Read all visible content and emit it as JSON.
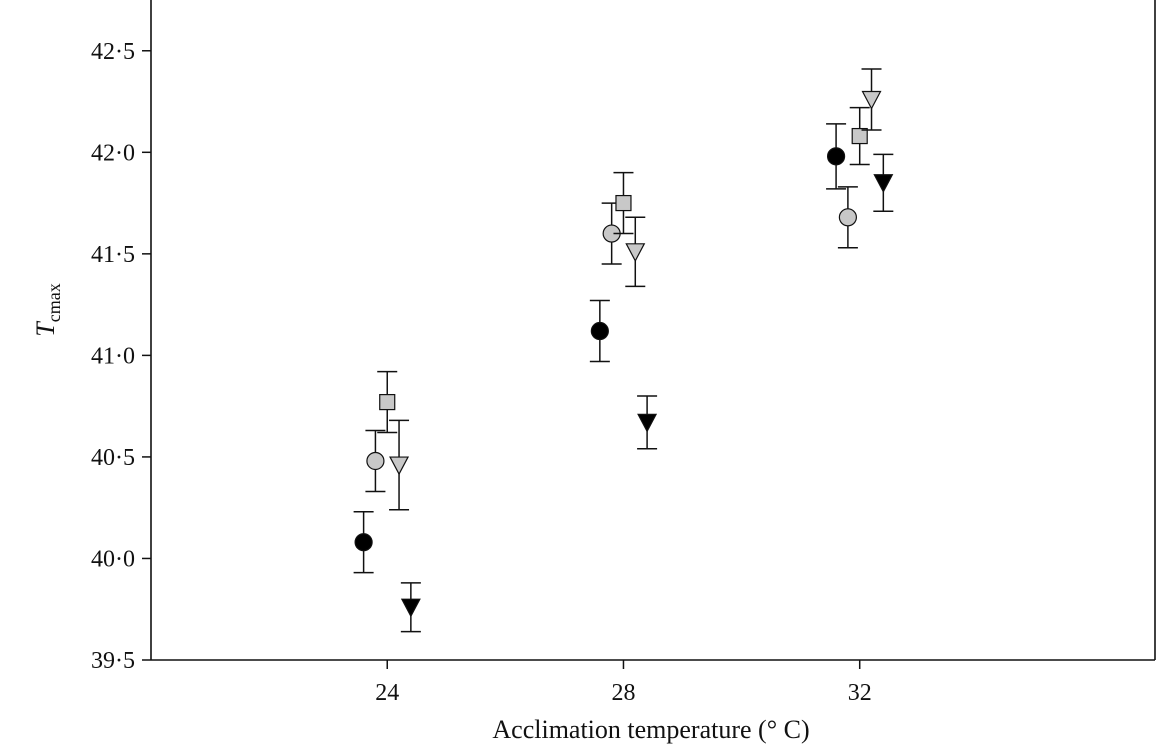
{
  "chart_data": {
    "type": "scatter",
    "title": "",
    "xlabel": "Acclimation  temperature (° C)",
    "ylabel_main": "T",
    "ylabel_sub": "cmax",
    "xlim": [
      20,
      37
    ],
    "ylim": [
      39.5,
      42.75
    ],
    "x_ticks": [
      24,
      28,
      32
    ],
    "x_tick_labels": [
      "24",
      "28",
      "32"
    ],
    "y_ticks": [
      39.5,
      40.0,
      40.5,
      41.0,
      41.5,
      42.0,
      42.5
    ],
    "y_tick_labels": [
      "39·5",
      "40·0",
      "40·5",
      "41·0",
      "41·5",
      "42·0",
      "42·5"
    ],
    "grid": false,
    "series": [
      {
        "marker": "circle",
        "fill": "#000000",
        "points": [
          {
            "x": 23.6,
            "y": 40.08,
            "err": 0.15
          },
          {
            "x": 27.6,
            "y": 41.12,
            "err": 0.15
          },
          {
            "x": 31.6,
            "y": 41.98,
            "err": 0.16
          }
        ]
      },
      {
        "marker": "circle",
        "fill": "#c8c8c8",
        "points": [
          {
            "x": 23.8,
            "y": 40.48,
            "err": 0.15
          },
          {
            "x": 27.8,
            "y": 41.6,
            "err": 0.15
          },
          {
            "x": 31.8,
            "y": 41.68,
            "err": 0.15
          }
        ]
      },
      {
        "marker": "square",
        "fill": "#c8c8c8",
        "points": [
          {
            "x": 24.0,
            "y": 40.77,
            "err": 0.15
          },
          {
            "x": 28.0,
            "y": 41.75,
            "err": 0.15
          },
          {
            "x": 32.0,
            "y": 42.08,
            "err": 0.14
          }
        ]
      },
      {
        "marker": "triangle-down",
        "fill": "#c8c8c8",
        "points": [
          {
            "x": 24.2,
            "y": 40.46,
            "err": 0.22
          },
          {
            "x": 28.2,
            "y": 41.51,
            "err": 0.17
          },
          {
            "x": 32.2,
            "y": 42.26,
            "err": 0.15
          }
        ]
      },
      {
        "marker": "triangle-down",
        "fill": "#000000",
        "points": [
          {
            "x": 24.4,
            "y": 39.76,
            "err": 0.12
          },
          {
            "x": 28.4,
            "y": 40.67,
            "err": 0.13
          },
          {
            "x": 32.4,
            "y": 41.85,
            "err": 0.14
          }
        ]
      }
    ]
  }
}
